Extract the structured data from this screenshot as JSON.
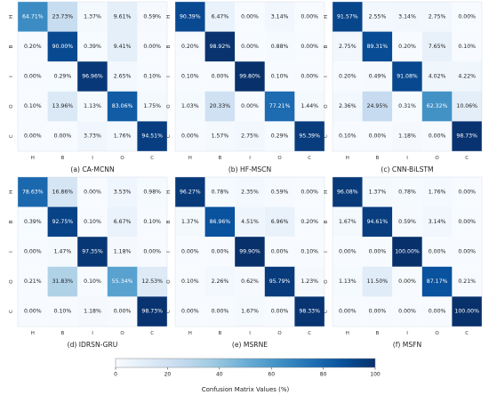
{
  "chart_data": [
    {
      "type": "heatmap",
      "title": "(a) CA-MCNN",
      "x_categories": [
        "H",
        "B",
        "I",
        "O",
        "C"
      ],
      "y_categories": [
        "H",
        "B",
        "I",
        "O",
        "C"
      ],
      "values": [
        [
          64.71,
          23.73,
          1.37,
          9.61,
          0.59
        ],
        [
          0.2,
          90.0,
          0.39,
          9.41,
          0.0
        ],
        [
          0.0,
          0.29,
          96.96,
          2.65,
          0.1
        ],
        [
          0.1,
          13.96,
          1.13,
          83.06,
          1.75
        ],
        [
          0.0,
          0.0,
          3.73,
          1.76,
          94.51
        ]
      ]
    },
    {
      "type": "heatmap",
      "title": "(b) HF-MSCN",
      "x_categories": [
        "H",
        "B",
        "I",
        "O",
        "C"
      ],
      "y_categories": [
        "H",
        "B",
        "I",
        "O",
        "C"
      ],
      "values": [
        [
          90.39,
          6.47,
          0.0,
          3.14,
          0.0
        ],
        [
          0.2,
          98.92,
          0.0,
          0.88,
          0.0
        ],
        [
          0.1,
          0.0,
          99.8,
          0.1,
          0.0
        ],
        [
          1.03,
          20.33,
          0.0,
          77.21,
          1.44
        ],
        [
          0.0,
          1.57,
          2.75,
          0.29,
          95.39
        ]
      ]
    },
    {
      "type": "heatmap",
      "title": "(c) CNN-BiLSTM",
      "x_categories": [
        "H",
        "B",
        "I",
        "O",
        "C"
      ],
      "y_categories": [
        "H",
        "B",
        "I",
        "O",
        "C"
      ],
      "values": [
        [
          91.57,
          2.55,
          3.14,
          2.75,
          0.0
        ],
        [
          2.75,
          89.31,
          0.2,
          7.65,
          0.1
        ],
        [
          0.2,
          0.49,
          91.08,
          4.02,
          4.22
        ],
        [
          2.36,
          24.95,
          0.31,
          62.32,
          10.06
        ],
        [
          0.1,
          0.0,
          1.18,
          0.0,
          98.73
        ]
      ]
    },
    {
      "type": "heatmap",
      "title": "(d) IDRSN-GRU",
      "x_categories": [
        "H",
        "B",
        "I",
        "O",
        "C"
      ],
      "y_categories": [
        "H",
        "B",
        "I",
        "O",
        "C"
      ],
      "values": [
        [
          78.63,
          16.86,
          0.0,
          3.53,
          0.98
        ],
        [
          0.39,
          92.75,
          0.1,
          6.67,
          0.1
        ],
        [
          0.0,
          1.47,
          97.35,
          1.18,
          0.0
        ],
        [
          0.21,
          31.83,
          0.1,
          55.34,
          12.53
        ],
        [
          0.0,
          0.1,
          1.18,
          0.0,
          98.73
        ]
      ]
    },
    {
      "type": "heatmap",
      "title": "(e) MSRNE",
      "x_categories": [
        "H",
        "B",
        "I",
        "O",
        "C"
      ],
      "y_categories": [
        "H",
        "B",
        "I",
        "O",
        "C"
      ],
      "values": [
        [
          96.27,
          0.78,
          2.35,
          0.59,
          0.0
        ],
        [
          1.37,
          86.96,
          4.51,
          6.96,
          0.2
        ],
        [
          0.0,
          0.0,
          99.9,
          0.0,
          0.1
        ],
        [
          0.1,
          2.26,
          0.62,
          95.79,
          1.23
        ],
        [
          0.0,
          0.0,
          1.67,
          0.0,
          98.33
        ]
      ]
    },
    {
      "type": "heatmap",
      "title": "(f) MSFN",
      "x_categories": [
        "H",
        "B",
        "I",
        "O",
        "C"
      ],
      "y_categories": [
        "H",
        "B",
        "I",
        "O",
        "C"
      ],
      "values": [
        [
          96.08,
          1.37,
          0.78,
          1.76,
          0.0
        ],
        [
          1.67,
          94.61,
          0.59,
          3.14,
          0.0
        ],
        [
          0.0,
          0.0,
          100.0,
          0.0,
          0.0
        ],
        [
          1.13,
          11.5,
          0.0,
          87.17,
          0.21
        ],
        [
          0.0,
          0.0,
          0.0,
          0.0,
          100.0
        ]
      ]
    }
  ],
  "colorbar": {
    "label": "Confusion Matrix Values (%)",
    "range": [
      0,
      100
    ],
    "ticks": [
      0,
      20,
      40,
      60,
      80,
      100
    ],
    "color_low": "#f7fbff",
    "color_high": "#08306b"
  }
}
